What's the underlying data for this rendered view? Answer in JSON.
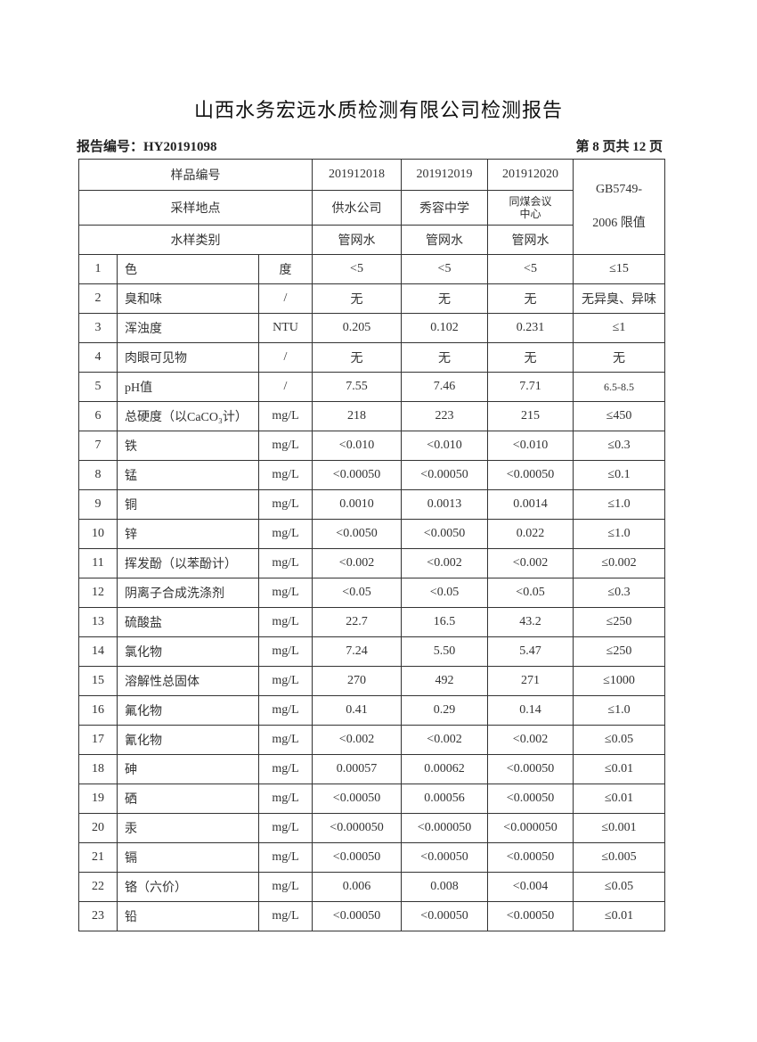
{
  "title": "山西水务宏远水质检测有限公司检测报告",
  "report_no": "报告编号：HY20191098",
  "page_no": "第 8 页共 12 页",
  "header": {
    "sample_no_label": "样品编号",
    "site_label": "采样地点",
    "type_label": "水样类别",
    "limit_label": "GB5749-2006 限值",
    "samples": [
      {
        "no": "201912018",
        "site": "供水公司",
        "type": "管网水"
      },
      {
        "no": "201912019",
        "site": "秀容中学",
        "type": "管网水"
      },
      {
        "no": "201912020",
        "site": "同煤会议中心",
        "type": "管网水"
      }
    ]
  },
  "rows": [
    [
      "1",
      "色",
      "度",
      "<5",
      "<5",
      "<5",
      "≤15"
    ],
    [
      "2",
      "臭和味",
      "/",
      "无",
      "无",
      "无",
      "无异臭、异味"
    ],
    [
      "3",
      "浑浊度",
      "NTU",
      "0.205",
      "0.102",
      "0.231",
      "≤1"
    ],
    [
      "4",
      "肉眼可见物",
      "/",
      "无",
      "无",
      "无",
      "无"
    ],
    [
      "5",
      "pH值",
      "/",
      "7.55",
      "7.46",
      "7.71",
      "6.5-8.5"
    ],
    [
      "6",
      "总硬度（以CaCO₃计）",
      "mg/L",
      "218",
      "223",
      "215",
      "≤450"
    ],
    [
      "7",
      "铁",
      "mg/L",
      "<0.010",
      "<0.010",
      "<0.010",
      "≤0.3"
    ],
    [
      "8",
      "锰",
      "mg/L",
      "<0.00050",
      "<0.00050",
      "<0.00050",
      "≤0.1"
    ],
    [
      "9",
      "铜",
      "mg/L",
      "0.0010",
      "0.0013",
      "0.0014",
      "≤1.0"
    ],
    [
      "10",
      "锌",
      "mg/L",
      "<0.0050",
      "<0.0050",
      "0.022",
      "≤1.0"
    ],
    [
      "11",
      "挥发酚（以苯酚计）",
      "mg/L",
      "<0.002",
      "<0.002",
      "<0.002",
      "≤0.002"
    ],
    [
      "12",
      "阴离子合成洗涤剂",
      "mg/L",
      "<0.05",
      "<0.05",
      "<0.05",
      "≤0.3"
    ],
    [
      "13",
      "硫酸盐",
      "mg/L",
      "22.7",
      "16.5",
      "43.2",
      "≤250"
    ],
    [
      "14",
      "氯化物",
      "mg/L",
      "7.24",
      "5.50",
      "5.47",
      "≤250"
    ],
    [
      "15",
      "溶解性总固体",
      "mg/L",
      "270",
      "492",
      "271",
      "≤1000"
    ],
    [
      "16",
      "氟化物",
      "mg/L",
      "0.41",
      "0.29",
      "0.14",
      "≤1.0"
    ],
    [
      "17",
      "氰化物",
      "mg/L",
      "<0.002",
      "<0.002",
      "<0.002",
      "≤0.05"
    ],
    [
      "18",
      "砷",
      "mg/L",
      "0.00057",
      "0.00062",
      "<0.00050",
      "≤0.01"
    ],
    [
      "19",
      "硒",
      "mg/L",
      "<0.00050",
      "0.00056",
      "<0.00050",
      "≤0.01"
    ],
    [
      "20",
      "汞",
      "mg/L",
      "<0.000050",
      "<0.000050",
      "<0.000050",
      "≤0.001"
    ],
    [
      "21",
      "镉",
      "mg/L",
      "<0.00050",
      "<0.00050",
      "<0.00050",
      "≤0.005"
    ],
    [
      "22",
      "铬（六价）",
      "mg/L",
      "0.006",
      "0.008",
      "<0.004",
      "≤0.05"
    ],
    [
      "23",
      "铅",
      "mg/L",
      "<0.00050",
      "<0.00050",
      "<0.00050",
      "≤0.01"
    ]
  ]
}
